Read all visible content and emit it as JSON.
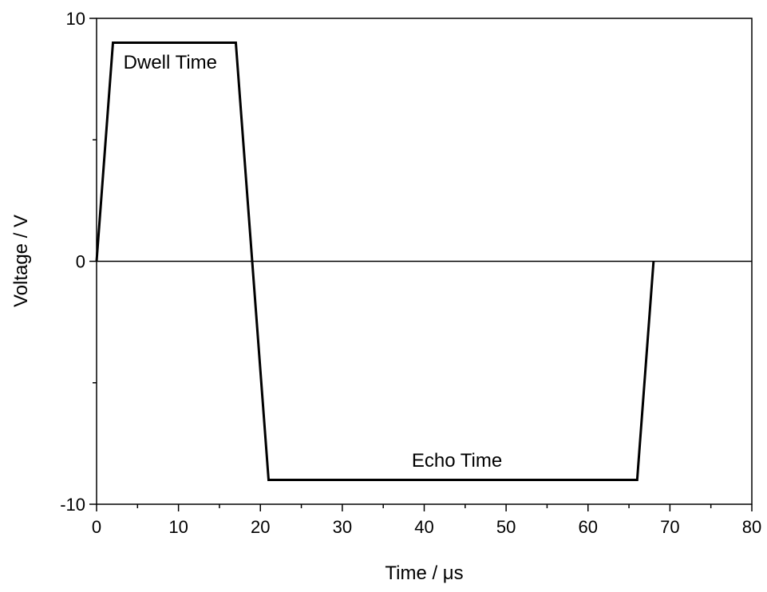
{
  "chart_data": {
    "type": "line",
    "title": "",
    "xlabel": "Time / μs",
    "ylabel": "Voltage / V",
    "xlim": [
      0,
      80
    ],
    "ylim": [
      -10,
      10
    ],
    "x_ticks": [
      0,
      10,
      20,
      30,
      40,
      50,
      60,
      70,
      80
    ],
    "y_ticks": [
      -10,
      0,
      10
    ],
    "x_tick_labels": [
      "0",
      "10",
      "20",
      "30",
      "40",
      "50",
      "60",
      "70",
      "80"
    ],
    "y_tick_labels": [
      "-10",
      "0",
      "10"
    ],
    "grid": false,
    "zero_line": true,
    "series": [
      {
        "x": [
          0,
          2,
          17,
          21,
          66,
          68
        ],
        "y": [
          0,
          9,
          9,
          -9,
          -9,
          0
        ],
        "color": "#000000"
      }
    ],
    "annotations": [
      {
        "text": "Dwell Time",
        "x": 9,
        "y": 8.2
      },
      {
        "text": "Echo Time",
        "x": 44,
        "y": -8.2
      }
    ]
  }
}
